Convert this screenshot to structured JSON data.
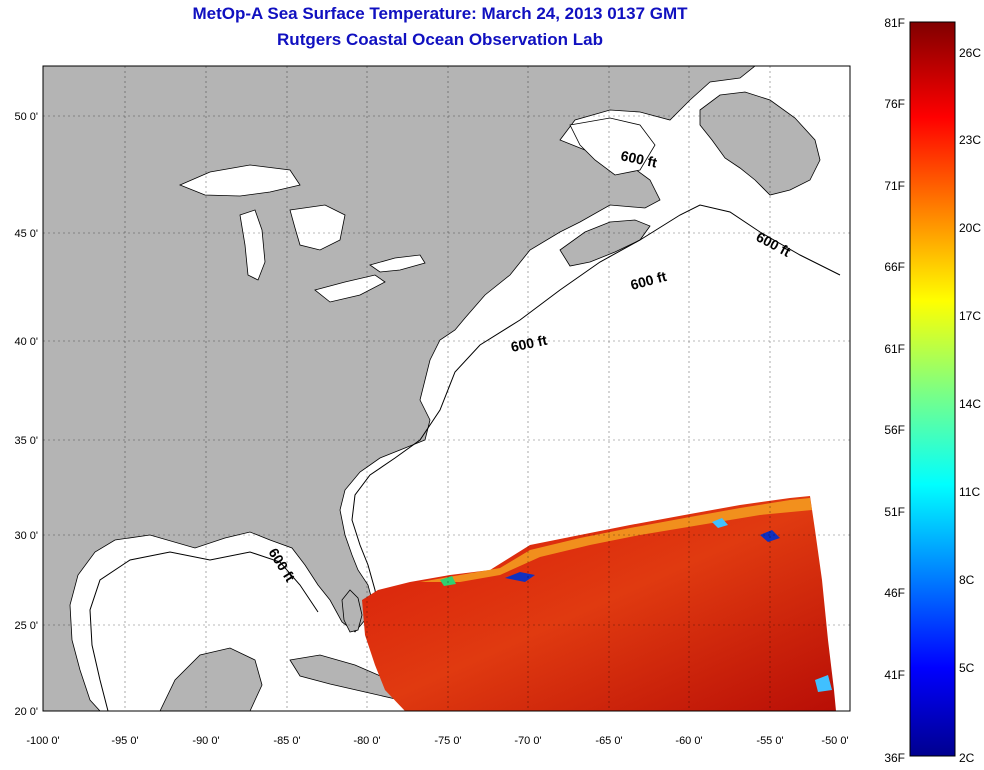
{
  "header": {
    "title": "MetOp-A Sea Surface Temperature:  March 24, 2013 0137 GMT",
    "subtitle": "Rutgers Coastal Ocean Observation Lab"
  },
  "map": {
    "lon_labels": [
      "-100 0'",
      "-95 0'",
      "-90 0'",
      "-85 0'",
      "-80 0'",
      "-75 0'",
      "-70 0'",
      "-65 0'",
      "-60 0'",
      "-55 0'",
      "-50 0'"
    ],
    "lat_labels": [
      "50 0'",
      "45 0'",
      "40 0'",
      "35 0'",
      "30 0'",
      "25 0'",
      "20 0'"
    ],
    "contour_label": "600 ft",
    "land_color": "#b4b4b4",
    "ocean_color": "#ffffff"
  },
  "colorbar": {
    "fahrenheit_labels": [
      "81F",
      "76F",
      "71F",
      "66F",
      "61F",
      "56F",
      "51F",
      "46F",
      "41F",
      "36F"
    ],
    "celsius_labels": [
      "26C",
      "23C",
      "20C",
      "17C",
      "14C",
      "11C",
      "8C",
      "5C",
      "2C"
    ],
    "colormap": "jet"
  }
}
